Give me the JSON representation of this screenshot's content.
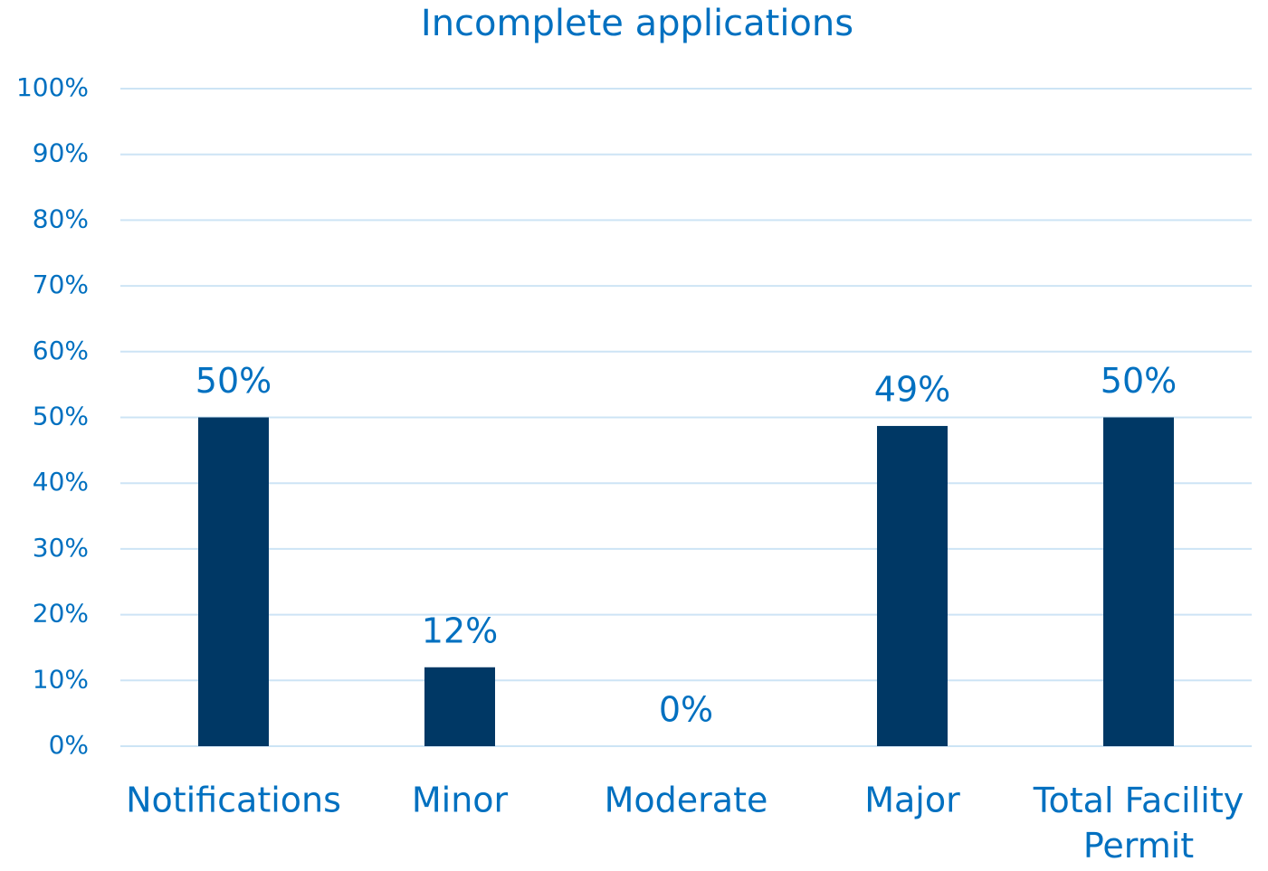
{
  "chart_data": {
    "type": "bar",
    "title": "Incomplete applications",
    "categories": [
      "Notifications",
      "Minor",
      "Moderate",
      "Major",
      "Total Facility Permit"
    ],
    "values": [
      50,
      12,
      0,
      48.7,
      50
    ],
    "value_labels": [
      "50%",
      "12%",
      "0%",
      "49%",
      "50%"
    ],
    "color": "#003865",
    "ylim": [
      0,
      100
    ],
    "yticks": [
      {
        "value": 0,
        "label": "0%"
      },
      {
        "value": 10,
        "label": "10%"
      },
      {
        "value": 20,
        "label": "20%"
      },
      {
        "value": 30,
        "label": "30%"
      },
      {
        "value": 40,
        "label": "40%"
      },
      {
        "value": 50,
        "label": "50%"
      },
      {
        "value": 60,
        "label": "60%"
      },
      {
        "value": 70,
        "label": "70%"
      },
      {
        "value": 80,
        "label": "80%"
      },
      {
        "value": 90,
        "label": "90%"
      },
      {
        "value": 100,
        "label": "100%"
      }
    ],
    "grid": true
  }
}
